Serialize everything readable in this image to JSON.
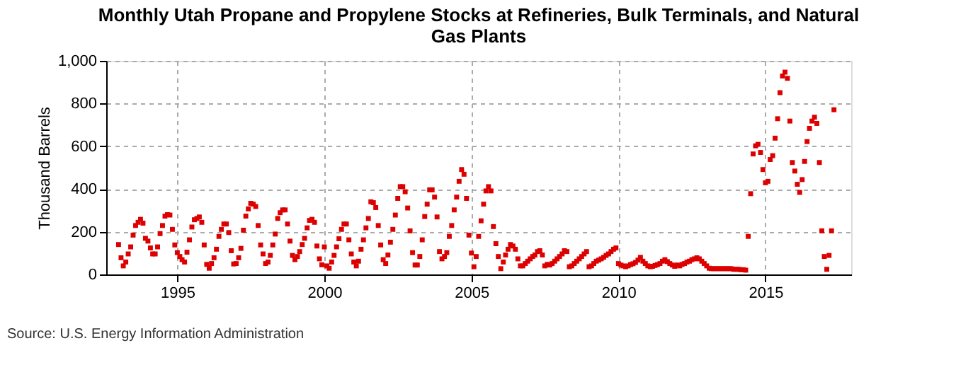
{
  "chart_data": {
    "type": "scatter",
    "title": "Monthly Utah Propane and Propylene Stocks at Refineries, Bulk Terminals, and Natural Gas Plants",
    "ylabel": "Thousand Barrels",
    "annotations": [
      "Source: U.S. Energy Information Administration"
    ],
    "marker": "square",
    "grid": true,
    "legend": false,
    "xlim": [
      "1992-08",
      "2017-12"
    ],
    "xticks": [
      "1995",
      "2000",
      "2005",
      "2010",
      "2015"
    ],
    "ylim": [
      0,
      1000
    ],
    "yticks": [
      0,
      200,
      400,
      600,
      800,
      {
        "value": 1000,
        "label": "1,000"
      }
    ],
    "x": [
      "1993-01",
      "1993-02",
      "1993-03",
      "1993-04",
      "1993-05",
      "1993-06",
      "1993-07",
      "1993-08",
      "1993-09",
      "1993-10",
      "1993-11",
      "1993-12",
      "1994-01",
      "1994-02",
      "1994-03",
      "1994-04",
      "1994-05",
      "1994-06",
      "1994-07",
      "1994-08",
      "1994-09",
      "1994-10",
      "1994-11",
      "1994-12",
      "1995-01",
      "1995-02",
      "1995-03",
      "1995-04",
      "1995-05",
      "1995-06",
      "1995-07",
      "1995-08",
      "1995-09",
      "1995-10",
      "1995-11",
      "1995-12",
      "1996-01",
      "1996-02",
      "1996-03",
      "1996-04",
      "1996-05",
      "1996-06",
      "1996-07",
      "1996-08",
      "1996-09",
      "1996-10",
      "1996-11",
      "1996-12",
      "1997-01",
      "1997-02",
      "1997-03",
      "1997-04",
      "1997-05",
      "1997-06",
      "1997-07",
      "1997-08",
      "1997-09",
      "1997-10",
      "1997-11",
      "1997-12",
      "1998-01",
      "1998-02",
      "1998-03",
      "1998-04",
      "1998-05",
      "1998-06",
      "1998-07",
      "1998-08",
      "1998-09",
      "1998-10",
      "1998-11",
      "1998-12",
      "1999-01",
      "1999-02",
      "1999-03",
      "1999-04",
      "1999-05",
      "1999-06",
      "1999-07",
      "1999-08",
      "1999-09",
      "1999-10",
      "1999-11",
      "1999-12",
      "2000-01",
      "2000-02",
      "2000-03",
      "2000-04",
      "2000-05",
      "2000-06",
      "2000-07",
      "2000-08",
      "2000-09",
      "2000-10",
      "2000-11",
      "2000-12",
      "2001-01",
      "2001-02",
      "2001-03",
      "2001-04",
      "2001-05",
      "2001-06",
      "2001-07",
      "2001-08",
      "2001-09",
      "2001-10",
      "2001-11",
      "2001-12",
      "2002-01",
      "2002-02",
      "2002-03",
      "2002-04",
      "2002-05",
      "2002-06",
      "2002-07",
      "2002-08",
      "2002-09",
      "2002-10",
      "2002-11",
      "2002-12",
      "2003-01",
      "2003-02",
      "2003-03",
      "2003-04",
      "2003-05",
      "2003-06",
      "2003-07",
      "2003-08",
      "2003-09",
      "2003-10",
      "2003-11",
      "2003-12",
      "2004-01",
      "2004-02",
      "2004-03",
      "2004-04",
      "2004-05",
      "2004-06",
      "2004-07",
      "2004-08",
      "2004-09",
      "2004-10",
      "2004-11",
      "2004-12",
      "2005-01",
      "2005-02",
      "2005-03",
      "2005-04",
      "2005-05",
      "2005-06",
      "2005-07",
      "2005-08",
      "2005-09",
      "2005-10",
      "2005-11",
      "2005-12",
      "2006-01",
      "2006-02",
      "2006-03",
      "2006-04",
      "2006-05",
      "2006-06",
      "2006-07",
      "2006-08",
      "2006-09",
      "2006-10",
      "2006-11",
      "2006-12",
      "2007-01",
      "2007-02",
      "2007-03",
      "2007-04",
      "2007-05",
      "2007-06",
      "2007-07",
      "2007-08",
      "2007-09",
      "2007-10",
      "2007-11",
      "2007-12",
      "2008-01",
      "2008-02",
      "2008-03",
      "2008-04",
      "2008-05",
      "2008-06",
      "2008-07",
      "2008-08",
      "2008-09",
      "2008-10",
      "2008-11",
      "2008-12",
      "2009-01",
      "2009-02",
      "2009-03",
      "2009-04",
      "2009-05",
      "2009-06",
      "2009-07",
      "2009-08",
      "2009-09",
      "2009-10",
      "2009-11",
      "2009-12",
      "2010-01",
      "2010-02",
      "2010-03",
      "2010-04",
      "2010-05",
      "2010-06",
      "2010-07",
      "2010-08",
      "2010-09",
      "2010-10",
      "2010-11",
      "2010-12",
      "2011-01",
      "2011-02",
      "2011-03",
      "2011-04",
      "2011-05",
      "2011-06",
      "2011-07",
      "2011-08",
      "2011-09",
      "2011-10",
      "2011-11",
      "2011-12",
      "2012-01",
      "2012-02",
      "2012-03",
      "2012-04",
      "2012-05",
      "2012-06",
      "2012-07",
      "2012-08",
      "2012-09",
      "2012-10",
      "2012-11",
      "2012-12",
      "2013-01",
      "2013-02",
      "2013-03",
      "2013-04",
      "2013-05",
      "2013-06",
      "2013-07",
      "2013-08",
      "2013-09",
      "2013-10",
      "2013-11",
      "2013-12",
      "2014-01",
      "2014-02",
      "2014-03",
      "2014-04",
      "2014-05",
      "2014-06",
      "2014-07",
      "2014-08",
      "2014-09",
      "2014-10",
      "2014-11",
      "2014-12",
      "2015-01",
      "2015-02",
      "2015-03",
      "2015-04",
      "2015-05",
      "2015-06",
      "2015-07",
      "2015-08",
      "2015-09",
      "2015-10",
      "2015-11",
      "2015-12",
      "2016-01",
      "2016-02",
      "2016-03",
      "2016-04",
      "2016-05",
      "2016-06",
      "2016-07",
      "2016-08",
      "2016-09",
      "2016-10",
      "2016-11",
      "2016-12",
      "2017-01",
      "2017-02",
      "2017-03",
      "2017-04",
      "2017-05"
    ],
    "series": [
      {
        "color": "#dd0000",
        "values": [
          140,
          78,
          40,
          58,
          96,
          129,
          184,
          229,
          244,
          258,
          240,
          169,
          156,
          124,
          96,
          96,
          129,
          191,
          229,
          273,
          280,
          278,
          211,
          138,
          102,
          84,
          69,
          58,
          104,
          162,
          222,
          256,
          262,
          269,
          244,
          138,
          47,
          29,
          51,
          78,
          118,
          178,
          211,
          236,
          236,
          196,
          111,
          49,
          51,
          78,
          122,
          207,
          273,
          307,
          333,
          329,
          318,
          229,
          138,
          96,
          51,
          58,
          89,
          138,
          189,
          262,
          289,
          302,
          302,
          236,
          156,
          89,
          69,
          84,
          107,
          140,
          169,
          218,
          253,
          258,
          244,
          133,
          73,
          45,
          129,
          40,
          29,
          58,
          89,
          129,
          167,
          211,
          236,
          236,
          162,
          96,
          58,
          40,
          62,
          118,
          162,
          218,
          262,
          340,
          336,
          313,
          229,
          138,
          69,
          51,
          91,
          151,
          211,
          278,
          356,
          411,
          411,
          387,
          311,
          204,
          102,
          44,
          44,
          84,
          162,
          271,
          329,
          396,
          396,
          362,
          269,
          107,
          73,
          84,
          102,
          178,
          229,
          302,
          362,
          436,
          491,
          469,
          356,
          184,
          100,
          36,
          84,
          178,
          251,
          329,
          391,
          411,
          391,
          224,
          144,
          84,
          27,
          58,
          91,
          118,
          140,
          133,
          118,
          73,
          40,
          40,
          51,
          62,
          73,
          84,
          91,
          107,
          111,
          91,
          40,
          47,
          44,
          51,
          62,
          73,
          84,
          96,
          111,
          107,
          36,
          40,
          51,
          62,
          73,
          84,
          96,
          107,
          36,
          40,
          51,
          62,
          67,
          73,
          80,
          89,
          96,
          107,
          118,
          124,
          51,
          44,
          40,
          36,
          40,
          46,
          50,
          56,
          67,
          80,
          62,
          51,
          40,
          36,
          38,
          42,
          46,
          51,
          62,
          69,
          60,
          51,
          44,
          38,
          44,
          40,
          47,
          51,
          58,
          62,
          69,
          73,
          78,
          73,
          62,
          51,
          40,
          29,
          27,
          27,
          27,
          27,
          27,
          27,
          27,
          27,
          27,
          24,
          24,
          24,
          22,
          22,
          20,
          178,
          378,
          564,
          602,
          609,
          571,
          491,
          429,
          436,
          538,
          556,
          638,
          729,
          851,
          929,
          947,
          918,
          718,
          524,
          484,
          422,
          384,
          444,
          529,
          622,
          684,
          718,
          736,
          707,
          524,
          204,
          84,
          24,
          89,
          204,
          771
        ]
      }
    ]
  }
}
